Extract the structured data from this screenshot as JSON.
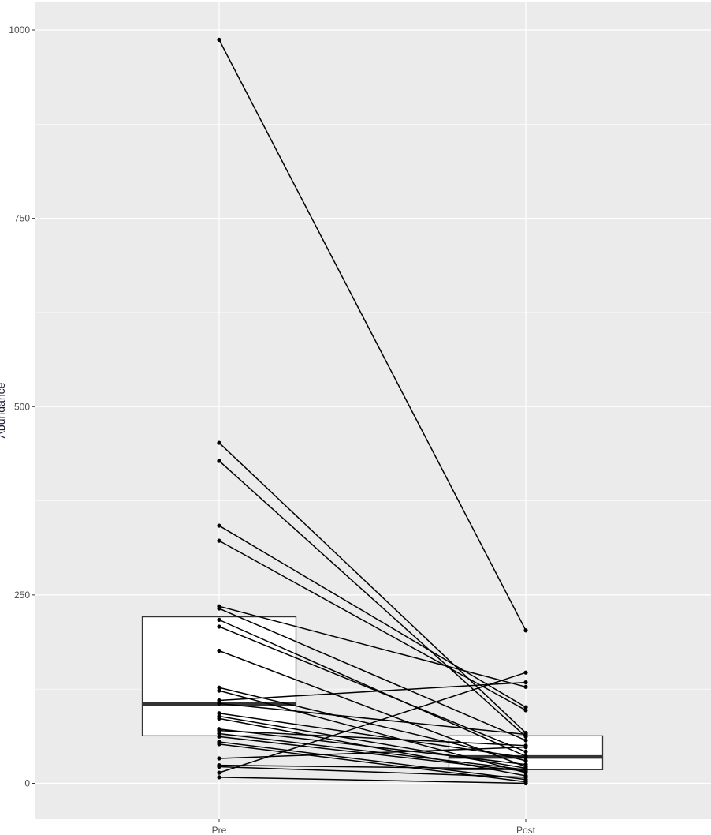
{
  "chart_data": {
    "type": "box",
    "description_of_layers": [
      "boxplot",
      "paired points",
      "paired lines"
    ],
    "categories": [
      "Pre",
      "Post"
    ],
    "xlabel": "",
    "ylabel": "Abundance",
    "ylim": [
      -45,
      1000
    ],
    "y_ticks": [
      0,
      250,
      500,
      750,
      1000
    ],
    "grid": true,
    "legend": "none",
    "boxplot": [
      {
        "category": "Pre",
        "q1": 63,
        "median": 105,
        "q3": 221
      },
      {
        "category": "Post",
        "q1": 18,
        "median": 35,
        "q3": 63
      }
    ],
    "pairs": [
      {
        "pre": 987,
        "post": 203
      },
      {
        "pre": 452,
        "post": 67
      },
      {
        "pre": 428,
        "post": 62
      },
      {
        "pre": 342,
        "post": 101
      },
      {
        "pre": 322,
        "post": 97
      },
      {
        "pre": 235,
        "post": 128
      },
      {
        "pre": 232,
        "post": 57
      },
      {
        "pre": 217,
        "post": 36
      },
      {
        "pre": 208,
        "post": 42
      },
      {
        "pre": 176,
        "post": 22
      },
      {
        "pre": 127,
        "post": 30
      },
      {
        "pre": 123,
        "post": 14
      },
      {
        "pre": 110,
        "post": 134
      },
      {
        "pre": 106,
        "post": 65
      },
      {
        "pre": 93,
        "post": 34
      },
      {
        "pre": 89,
        "post": 20
      },
      {
        "pre": 86,
        "post": 10
      },
      {
        "pre": 72,
        "post": 25
      },
      {
        "pre": 70,
        "post": 50
      },
      {
        "pre": 66,
        "post": 18
      },
      {
        "pre": 62,
        "post": 16
      },
      {
        "pre": 55,
        "post": 5
      },
      {
        "pre": 52,
        "post": 2
      },
      {
        "pre": 33,
        "post": 48
      },
      {
        "pre": 24,
        "post": 19
      },
      {
        "pre": 22,
        "post": 8
      },
      {
        "pre": 14,
        "post": 147
      },
      {
        "pre": 8,
        "post": 0
      }
    ]
  },
  "colors": {
    "panel_background": "#ebebeb",
    "grid_major": "#ffffff",
    "box_fill": "#ffffff",
    "stroke": "#000000",
    "median": "#333333"
  }
}
